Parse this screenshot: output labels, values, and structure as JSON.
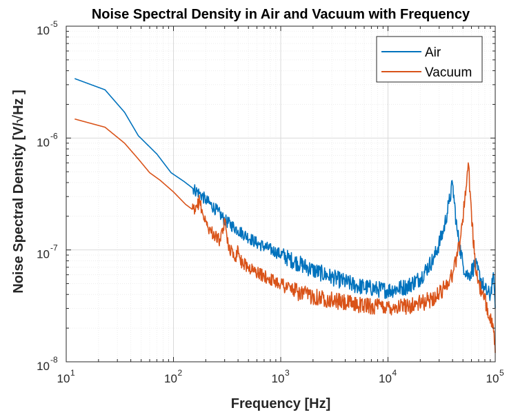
{
  "chart_data": {
    "type": "line",
    "title": "Noise Spectral Density in Air and Vacuum with Frequency",
    "xlabel": "Frequency [Hz]",
    "ylabel": "Noise Spectral Density [V/√Hz ]",
    "xscale": "log",
    "yscale": "log",
    "xlim": [
      10,
      100000
    ],
    "ylim": [
      1e-08,
      1e-05
    ],
    "grid": true,
    "legend_position": "top-right",
    "x_ticks": [
      {
        "base": "10",
        "exp": "1"
      },
      {
        "base": "10",
        "exp": "2"
      },
      {
        "base": "10",
        "exp": "3"
      },
      {
        "base": "10",
        "exp": "4"
      },
      {
        "base": "10",
        "exp": "5"
      }
    ],
    "y_ticks": [
      {
        "base": "10",
        "exp": "-8"
      },
      {
        "base": "10",
        "exp": "-7"
      },
      {
        "base": "10",
        "exp": "-6"
      },
      {
        "base": "10",
        "exp": "-5"
      }
    ],
    "series": [
      {
        "name": "Air",
        "color": "#0072BD",
        "x": [
          12,
          23,
          35,
          47,
          70,
          95,
          125,
          175,
          200,
          260,
          300,
          400,
          600,
          900,
          1200,
          2000,
          3000,
          5000,
          8000,
          10000,
          15000,
          20000,
          27000,
          33000,
          37000,
          40000,
          44000,
          50000,
          56000,
          65000,
          80000,
          90000,
          95000,
          98000,
          100000
        ],
        "y": [
          3.4e-06,
          2.7e-06,
          1.7e-06,
          1.05e-06,
          7.2e-07,
          4.9e-07,
          4.1e-07,
          3.2e-07,
          2.8e-07,
          2.2e-07,
          1.85e-07,
          1.5e-07,
          1.15e-07,
          9.6e-08,
          8.3e-08,
          6.6e-08,
          5.7e-08,
          4.8e-08,
          4.45e-08,
          4.35e-08,
          4.7e-08,
          5.6e-08,
          8.5e-08,
          1.5e-07,
          2.6e-07,
          3.9e-07,
          1.5e-07,
          7.4e-08,
          5.8e-08,
          7.4e-08,
          4.4e-08,
          3.9e-08,
          5.8e-08,
          4.5e-08,
          3e-08
        ]
      },
      {
        "name": "Vacuum",
        "color": "#D95319",
        "x": [
          12,
          23,
          35,
          47,
          60,
          75,
          100,
          130,
          160,
          175,
          190,
          210,
          240,
          275,
          300,
          330,
          380,
          400,
          420,
          500,
          700,
          1000,
          1500,
          2500,
          4000,
          7000,
          10000,
          15000,
          22000,
          30000,
          40000,
          47000,
          52000,
          56000,
          60000,
          65000,
          75000,
          85000,
          95000,
          100000
        ],
        "y": [
          1.48e-06,
          1.25e-06,
          9e-07,
          6.5e-07,
          4.9e-07,
          4.2e-07,
          3.3e-07,
          2.55e-07,
          2.2e-07,
          2.8e-07,
          2e-07,
          1.6e-07,
          1.35e-07,
          1.2e-07,
          1.8e-07,
          1.05e-07,
          8.6e-08,
          1.05e-07,
          8e-08,
          7e-08,
          5.8e-08,
          5e-08,
          4.1e-08,
          3.7e-08,
          3.35e-08,
          3.15e-08,
          3.1e-08,
          3.15e-08,
          3.4e-08,
          4e-08,
          6e-08,
          1.2e-07,
          2.8e-07,
          6e-07,
          2.2e-07,
          7e-08,
          4e-08,
          3e-08,
          2.2e-08,
          1.2e-08
        ]
      }
    ]
  }
}
